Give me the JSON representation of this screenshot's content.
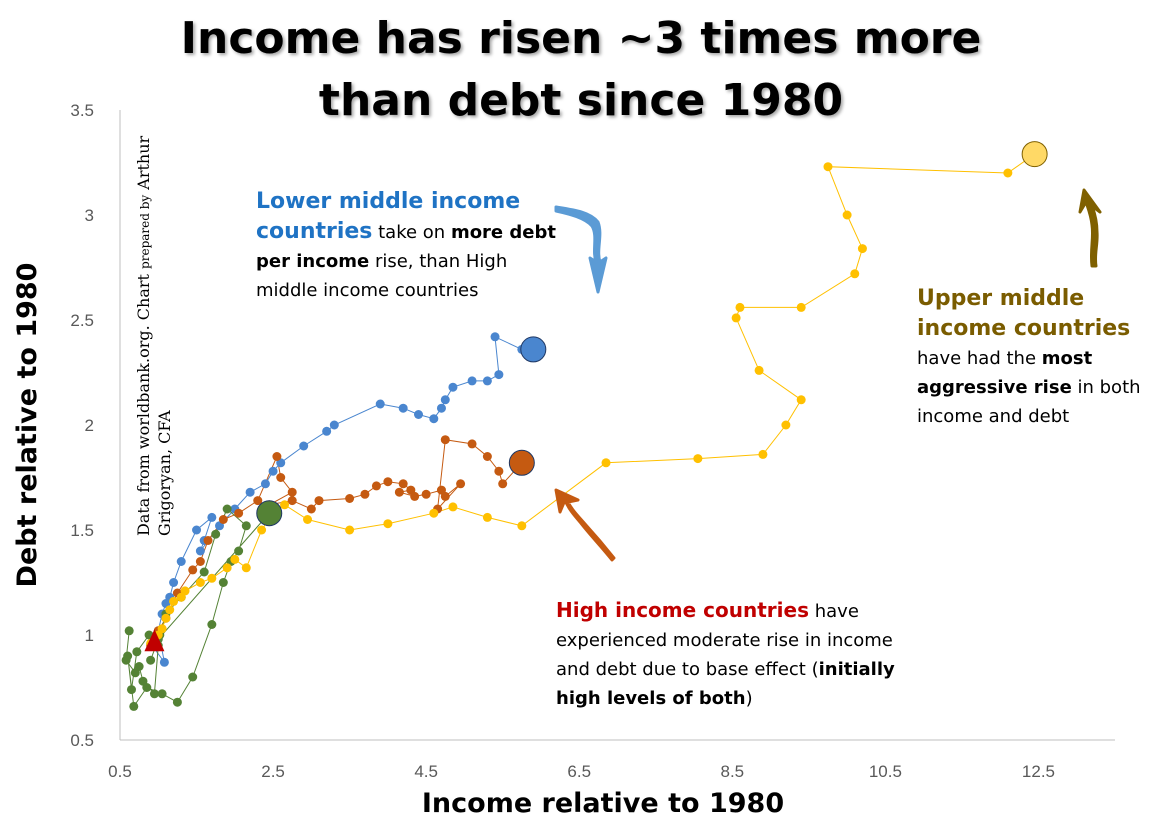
{
  "title_line1": "Income has risen ~3 times more",
  "title_line2": "than debt since 1980",
  "source": {
    "part1": "Data from worldbank.org. Chart",
    "part2": "prepared by",
    "part3": "Arthur Grigoryan, CFA"
  },
  "notes": {
    "lower_middle": {
      "heading": "Lower middle income countries",
      "t1": " take on ",
      "b1": "more debt per income",
      "t2": " rise, than High middle income countries"
    },
    "upper_middle": {
      "heading": "Upper middle income countries",
      "t1": "have had the ",
      "b1": "most aggressive rise",
      "t2": " in both income and debt"
    },
    "high": {
      "heading": "High income countries",
      "t1": " have experienced moderate rise in income and debt due to base effect (",
      "b1": "initially high levels of both",
      "t2": ")"
    }
  },
  "chart_data": {
    "type": "scatter",
    "xlabel": "Income relative to 1980",
    "ylabel": "Debt relative to 1980",
    "xlim": [
      0.5,
      13.5
    ],
    "ylim": [
      0.5,
      3.5
    ],
    "xticks": [
      "0.5",
      "2.5",
      "4.5",
      "6.5",
      "8.5",
      "10.5",
      "12.5"
    ],
    "yticks": [
      "0.5",
      "1",
      "1.5",
      "2",
      "2.5",
      "3",
      "3.5"
    ],
    "grid": false,
    "series": [
      {
        "group": "lower_middle",
        "color": "#4a86cf",
        "x": [
          0.92,
          1.08,
          1.0,
          1.05,
          1.1,
          1.15,
          1.2,
          1.3,
          1.5,
          1.7,
          1.6,
          1.55,
          1.8,
          2.0,
          2.2,
          2.4,
          2.5,
          2.6,
          2.9,
          3.2,
          3.3,
          3.9,
          4.2,
          4.4,
          4.6,
          4.7,
          4.75,
          4.85,
          5.1,
          5.3,
          5.45,
          5.4,
          5.75,
          5.9
        ],
        "y": [
          0.95,
          0.87,
          1.02,
          1.1,
          1.15,
          1.18,
          1.25,
          1.35,
          1.5,
          1.56,
          1.45,
          1.4,
          1.52,
          1.6,
          1.68,
          1.72,
          1.78,
          1.82,
          1.9,
          1.97,
          2.0,
          2.1,
          2.08,
          2.05,
          2.03,
          2.08,
          2.12,
          2.18,
          2.21,
          2.21,
          2.24,
          2.42,
          2.36,
          2.36
        ]
      },
      {
        "group": "high",
        "color": "#c55a11",
        "x": [
          0.9,
          1.0,
          1.1,
          1.25,
          1.45,
          1.55,
          1.65,
          1.85,
          2.05,
          2.3,
          2.55,
          2.6,
          2.75,
          2.45,
          2.75,
          3.0,
          3.1,
          3.5,
          3.7,
          3.85,
          4.0,
          4.2,
          4.3,
          4.15,
          4.35,
          4.5,
          4.7,
          4.75,
          4.95,
          4.65,
          4.75,
          5.1,
          5.3,
          5.45,
          5.5,
          5.75
        ],
        "y": [
          0.95,
          1.02,
          1.08,
          1.2,
          1.31,
          1.35,
          1.45,
          1.55,
          1.58,
          1.64,
          1.85,
          1.75,
          1.68,
          1.62,
          1.64,
          1.6,
          1.64,
          1.65,
          1.67,
          1.71,
          1.73,
          1.72,
          1.69,
          1.68,
          1.66,
          1.67,
          1.69,
          1.66,
          1.72,
          1.6,
          1.93,
          1.91,
          1.85,
          1.78,
          1.72,
          1.82
        ]
      },
      {
        "group": "low_income",
        "color": "#548235",
        "x": [
          0.62,
          0.58,
          0.7,
          0.75,
          0.8,
          0.95,
          1.0,
          0.88,
          0.72,
          0.65,
          0.6,
          0.68,
          0.85,
          1.05,
          1.25,
          1.45,
          1.7,
          1.85,
          1.95,
          2.05,
          2.15,
          1.9,
          1.75,
          1.6,
          1.3,
          1.1,
          1.02,
          0.9,
          1.0,
          2.45
        ],
        "y": [
          1.02,
          0.88,
          0.82,
          0.85,
          0.78,
          0.72,
          0.95,
          1.0,
          0.92,
          0.74,
          0.9,
          0.66,
          0.75,
          0.72,
          0.68,
          0.8,
          1.05,
          1.25,
          1.35,
          1.4,
          1.52,
          1.6,
          1.48,
          1.3,
          1.18,
          1.1,
          1.0,
          0.88,
          0.98,
          1.58
        ]
      },
      {
        "group": "upper_middle",
        "color": "#ffc000",
        "x": [
          0.9,
          1.0,
          1.05,
          1.1,
          1.15,
          1.2,
          1.3,
          1.35,
          1.55,
          1.7,
          1.9,
          2.0,
          2.15,
          2.35,
          2.5,
          2.65,
          2.95,
          3.5,
          4.0,
          4.6,
          4.85,
          5.3,
          5.75,
          6.85,
          8.05,
          8.9,
          9.2,
          9.4,
          8.85,
          8.55,
          8.6,
          9.4,
          10.1,
          10.2,
          10.0,
          9.75,
          12.1,
          12.45
        ],
        "y": [
          0.96,
          1.0,
          1.03,
          1.08,
          1.12,
          1.16,
          1.18,
          1.21,
          1.25,
          1.27,
          1.32,
          1.36,
          1.32,
          1.5,
          1.58,
          1.62,
          1.55,
          1.5,
          1.53,
          1.58,
          1.61,
          1.56,
          1.52,
          1.82,
          1.84,
          1.86,
          2.0,
          2.12,
          2.26,
          2.51,
          2.56,
          2.56,
          2.72,
          2.84,
          3.0,
          3.23,
          3.2,
          3.29
        ]
      }
    ],
    "highlights": [
      {
        "group": "lower_middle",
        "x": 5.9,
        "y": 2.36,
        "color": "#4a86cf"
      },
      {
        "group": "high",
        "x": 5.75,
        "y": 1.82,
        "color": "#c55a11"
      },
      {
        "group": "low_income",
        "x": 2.45,
        "y": 1.58,
        "color": "#548235"
      },
      {
        "group": "upper_middle",
        "x": 12.45,
        "y": 3.29,
        "color": "#ffd966"
      },
      {
        "group": "origin",
        "x": 0.95,
        "y": 0.97,
        "color": "#c00000"
      }
    ],
    "arrows": [
      {
        "group": "lower_middle",
        "color": "#5b9bd5"
      },
      {
        "group": "high",
        "color": "#c55a11"
      },
      {
        "group": "upper_middle",
        "color": "#7f6000"
      }
    ]
  }
}
